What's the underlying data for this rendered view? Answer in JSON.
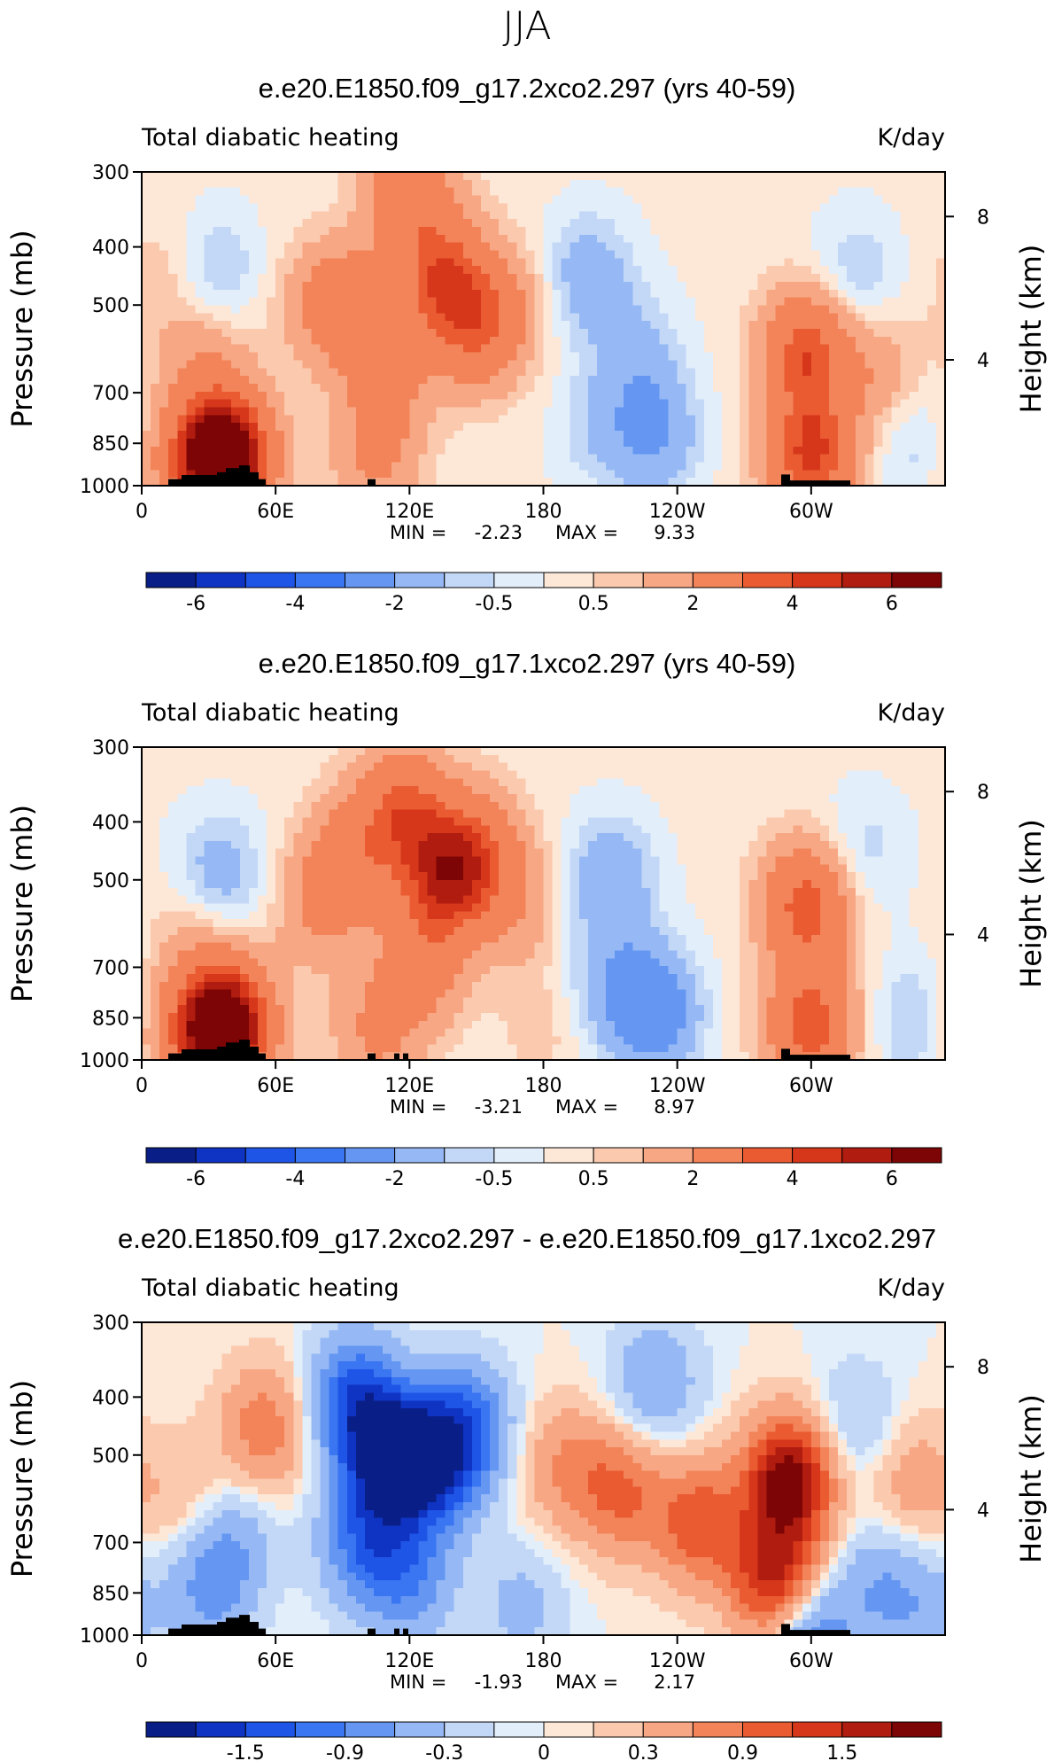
{
  "season": "JJA",
  "chart_data": [
    {
      "type": "heatmap",
      "title": "e.e20.E1850.f09_g17.2xco2.297 (yrs 40-59)",
      "left_label": "Total diabatic heating",
      "right_label": "K/day",
      "ylabel": "Pressure (mb)",
      "y2label": "Height (km)",
      "xticks": [
        "0",
        "60E",
        "120E",
        "180",
        "120W",
        "60W"
      ],
      "yticks": [
        "300",
        "400",
        "500",
        "700",
        "850",
        "1000"
      ],
      "y2ticks": [
        "8",
        "4"
      ],
      "stats": {
        "min_label": "MIN =",
        "min": "-2.23",
        "max_label": "MAX =",
        "max": "9.33"
      },
      "colorbar_labels": [
        "-6",
        "-4",
        "-2",
        "-0.5",
        "0.5",
        "2",
        "4",
        "6"
      ],
      "colors": [
        "#0a1e87",
        "#0f34c4",
        "#1f55e6",
        "#3a75f2",
        "#6496f2",
        "#96b9f5",
        "#c3d8f7",
        "#e3eefb",
        "#fde7d7",
        "#fbc9ad",
        "#f7a784",
        "#f38459",
        "#ea5b32",
        "#d6371a",
        "#b01c0f",
        "#7d0505"
      ],
      "features": [
        {
          "lon": 200,
          "p": 450,
          "value": -1.8
        },
        {
          "lon": 230,
          "p": 820,
          "value": -2.2
        },
        {
          "lon": 222,
          "p": 600,
          "value": -1.2
        },
        {
          "lon": 205,
          "p": 800,
          "value": -1.0
        },
        {
          "lon": 135,
          "p": 450,
          "value": 4.2
        },
        {
          "lon": 120,
          "p": 320,
          "value": 3.2
        },
        {
          "lon": 150,
          "p": 550,
          "value": 3.0
        },
        {
          "lon": 95,
          "p": 500,
          "value": 2.2
        },
        {
          "lon": 110,
          "p": 650,
          "value": 2.2
        },
        {
          "lon": 38,
          "p": 900,
          "value": 9.0
        },
        {
          "lon": 28,
          "p": 600,
          "value": 1.6
        },
        {
          "lon": 20,
          "p": 900,
          "value": 2.5
        },
        {
          "lon": 32,
          "p": 450,
          "value": -1.5
        },
        {
          "lon": 12,
          "p": 450,
          "value": 0.8
        },
        {
          "lon": 105,
          "p": 900,
          "value": 2.0
        },
        {
          "lon": 298,
          "p": 600,
          "value": 4.5
        },
        {
          "lon": 300,
          "p": 900,
          "value": 5.0
        },
        {
          "lon": 320,
          "p": 450,
          "value": -1.2
        },
        {
          "lon": 345,
          "p": 850,
          "value": -1.0
        },
        {
          "lon": 330,
          "p": 650,
          "value": 1.5
        },
        {
          "lon": 80,
          "p": 500,
          "value": 1.5
        },
        {
          "lon": 165,
          "p": 500,
          "value": 1.2
        }
      ]
    },
    {
      "type": "heatmap",
      "title": "e.e20.E1850.f09_g17.1xco2.297 (yrs 40-59)",
      "left_label": "Total diabatic heating",
      "right_label": "K/day",
      "ylabel": "Pressure (mb)",
      "y2label": "Height (km)",
      "xticks": [
        "0",
        "60E",
        "120E",
        "180",
        "120W",
        "60W"
      ],
      "yticks": [
        "300",
        "400",
        "500",
        "700",
        "850",
        "1000"
      ],
      "y2ticks": [
        "8",
        "4"
      ],
      "stats": {
        "min_label": "MIN =",
        "min": "-3.21",
        "max_label": "MAX =",
        "max": "8.97"
      },
      "colorbar_labels": [
        "-6",
        "-4",
        "-2",
        "-0.5",
        "0.5",
        "2",
        "4",
        "6"
      ],
      "colors": [
        "#0a1e87",
        "#0f34c4",
        "#1f55e6",
        "#3a75f2",
        "#6496f2",
        "#96b9f5",
        "#c3d8f7",
        "#e3eefb",
        "#fde7d7",
        "#fbc9ad",
        "#f7a784",
        "#f38459",
        "#ea5b32",
        "#d6371a",
        "#b01c0f",
        "#7d0505"
      ],
      "features": [
        {
          "lon": 210,
          "p": 500,
          "value": -2.0
        },
        {
          "lon": 230,
          "p": 830,
          "value": -3.2
        },
        {
          "lon": 210,
          "p": 750,
          "value": -1.5
        },
        {
          "lon": 135,
          "p": 500,
          "value": 4.5
        },
        {
          "lon": 118,
          "p": 380,
          "value": 3.8
        },
        {
          "lon": 150,
          "p": 450,
          "value": 3.2
        },
        {
          "lon": 95,
          "p": 450,
          "value": 2.5
        },
        {
          "lon": 80,
          "p": 550,
          "value": 2.0
        },
        {
          "lon": 125,
          "p": 700,
          "value": 2.5
        },
        {
          "lon": 38,
          "p": 880,
          "value": 8.5
        },
        {
          "lon": 20,
          "p": 900,
          "value": 2.5
        },
        {
          "lon": 34,
          "p": 500,
          "value": -2.0
        },
        {
          "lon": 25,
          "p": 600,
          "value": 1.2
        },
        {
          "lon": 105,
          "p": 900,
          "value": 2.0
        },
        {
          "lon": 298,
          "p": 550,
          "value": 4.5
        },
        {
          "lon": 300,
          "p": 880,
          "value": 4.5
        },
        {
          "lon": 322,
          "p": 450,
          "value": -1.0
        },
        {
          "lon": 345,
          "p": 860,
          "value": -1.2
        },
        {
          "lon": 180,
          "p": 880,
          "value": 0.6
        },
        {
          "lon": 168,
          "p": 550,
          "value": 1.5
        }
      ]
    },
    {
      "type": "heatmap",
      "title": "e.e20.E1850.f09_g17.2xco2.297 - e.e20.E1850.f09_g17.1xco2.297",
      "left_label": "Total diabatic heating",
      "right_label": "K/day",
      "ylabel": "Pressure (mb)",
      "y2label": "Height (km)",
      "xticks": [
        "0",
        "60E",
        "120E",
        "180",
        "120W",
        "60W"
      ],
      "yticks": [
        "300",
        "400",
        "500",
        "700",
        "850",
        "1000"
      ],
      "y2ticks": [
        "8",
        "4"
      ],
      "stats": {
        "min_label": "MIN =",
        "min": "-1.93",
        "max_label": "MAX =",
        "max": "2.17"
      },
      "colorbar_labels": [
        "-1.5",
        "-0.9",
        "-0.3",
        "0",
        "0.3",
        "0.9",
        "1.5"
      ],
      "colors": [
        "#0a1e87",
        "#0f34c4",
        "#1f55e6",
        "#3a75f2",
        "#6496f2",
        "#96b9f5",
        "#c3d8f7",
        "#e3eefb",
        "#fde7d7",
        "#fbc9ad",
        "#f7a784",
        "#f38459",
        "#ea5b32",
        "#d6371a",
        "#b01c0f",
        "#7d0505"
      ],
      "features": [
        {
          "lon": 110,
          "p": 500,
          "value": -1.9
        },
        {
          "lon": 130,
          "p": 520,
          "value": -1.5
        },
        {
          "lon": 95,
          "p": 400,
          "value": -1.2
        },
        {
          "lon": 145,
          "p": 450,
          "value": -1.1
        },
        {
          "lon": 100,
          "p": 700,
          "value": -1.0
        },
        {
          "lon": 120,
          "p": 800,
          "value": -0.8
        },
        {
          "lon": 40,
          "p": 700,
          "value": -0.5
        },
        {
          "lon": 30,
          "p": 850,
          "value": -0.6
        },
        {
          "lon": 55,
          "p": 450,
          "value": 0.8
        },
        {
          "lon": 20,
          "p": 600,
          "value": 0.3
        },
        {
          "lon": 290,
          "p": 550,
          "value": 2.0
        },
        {
          "lon": 285,
          "p": 820,
          "value": 1.8
        },
        {
          "lon": 250,
          "p": 650,
          "value": 1.1
        },
        {
          "lon": 215,
          "p": 580,
          "value": 0.9
        },
        {
          "lon": 190,
          "p": 520,
          "value": 0.6
        },
        {
          "lon": 230,
          "p": 380,
          "value": -0.6
        },
        {
          "lon": 320,
          "p": 450,
          "value": -0.4
        },
        {
          "lon": 345,
          "p": 550,
          "value": 0.5
        },
        {
          "lon": 330,
          "p": 820,
          "value": -0.5
        },
        {
          "lon": 350,
          "p": 920,
          "value": -0.4
        },
        {
          "lon": 170,
          "p": 900,
          "value": -0.4
        },
        {
          "lon": 297,
          "p": 980,
          "value": -1.2
        }
      ]
    }
  ]
}
